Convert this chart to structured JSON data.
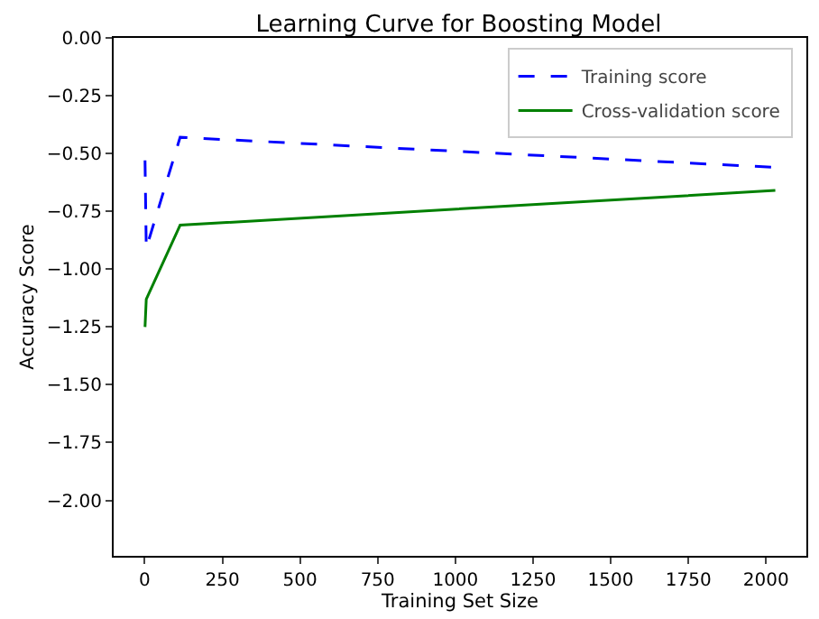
{
  "chart_data": {
    "type": "line",
    "title": "Learning Curve for Boosting Model",
    "xlabel": "Training Set Size",
    "ylabel": "Accuracy Score",
    "x": [
      1,
      5,
      114,
      2030
    ],
    "series": [
      {
        "name": "Training score",
        "color": "#0000ff",
        "line_style": "dashed",
        "values": [
          -0.53,
          -0.91,
          -0.43,
          -0.56
        ]
      },
      {
        "name": "Cross-validation score",
        "color": "#008000",
        "line_style": "solid",
        "values": [
          -1.25,
          -1.13,
          -0.81,
          -0.66
        ]
      }
    ],
    "xlim": [
      -100,
      2130
    ],
    "xticks": [
      0,
      250,
      500,
      750,
      1000,
      1250,
      1500,
      1750,
      2000
    ],
    "ylim": [
      -2.24,
      0
    ],
    "yticks": [
      {
        "value": 0,
        "label": "0.00"
      },
      {
        "value": -0.25,
        "label": "−0.25"
      },
      {
        "value": -0.5,
        "label": "−0.50"
      },
      {
        "value": -0.75,
        "label": "−0.75"
      },
      {
        "value": -1,
        "label": "−1.00"
      },
      {
        "value": -1.25,
        "label": "−1.25"
      },
      {
        "value": -1.5,
        "label": "−1.50"
      },
      {
        "value": -1.75,
        "label": "−1.75"
      },
      {
        "value": -2,
        "label": "−2.00"
      }
    ],
    "legend": "top right",
    "grid": false,
    "marker": "none"
  }
}
